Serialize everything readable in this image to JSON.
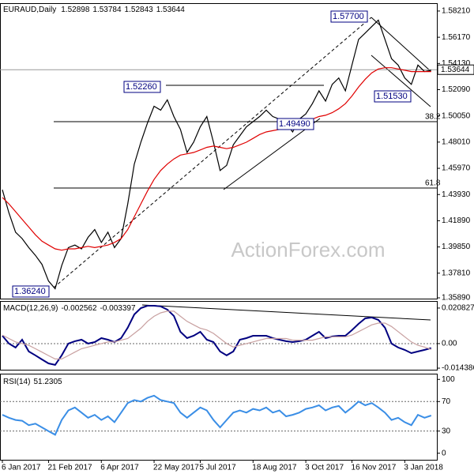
{
  "chart_data": [
    {
      "type": "line",
      "title": "EURAUD,Daily",
      "header_values": [
        1.52898,
        1.53784,
        1.52843,
        1.53644
      ],
      "last_price": 1.53644,
      "watermark": "ActionForex.com",
      "annotations": [
        "1.57700",
        "1.52260",
        "1.51530",
        "1.36240",
        "1.49490"
      ],
      "fib_labels": [
        "38.2",
        "61.8"
      ],
      "categories": [
        "6 Jan 2017",
        null,
        null,
        null,
        null,
        null,
        null,
        "21 Feb 2017",
        null,
        null,
        null,
        null,
        null,
        null,
        null,
        "6 Apr 2017",
        null,
        null,
        null,
        null,
        null,
        null,
        null,
        "22 May 2017",
        null,
        null,
        null,
        null,
        null,
        null,
        "5 Jul 2017",
        null,
        null,
        null,
        null,
        null,
        null,
        null,
        "18 Aug 2017",
        null,
        null,
        null,
        null,
        null,
        null,
        null,
        "3 Oct 2017",
        null,
        null,
        null,
        null,
        null,
        null,
        "16 Nov 2017",
        null,
        null,
        null,
        null,
        null,
        null,
        null,
        "3 Jan 2018",
        null,
        null,
        null,
        null
      ],
      "series": [
        {
          "color": "#000000",
          "values": [
            1.443,
            1.425,
            1.41,
            1.405,
            1.398,
            1.392,
            1.385,
            1.372,
            1.366,
            1.384,
            1.398,
            1.4,
            1.397,
            1.406,
            1.412,
            1.402,
            1.41,
            1.398,
            1.405,
            1.432,
            1.463,
            1.48,
            1.495,
            1.508,
            1.505,
            1.513,
            1.5,
            1.49,
            1.472,
            1.48,
            1.492,
            1.5,
            1.48,
            1.458,
            1.462,
            1.478,
            1.485,
            1.492,
            1.496,
            1.5,
            1.505,
            1.5,
            1.498,
            1.495,
            1.488,
            1.498,
            1.502,
            1.51,
            1.52,
            1.512,
            1.525,
            1.53,
            1.52,
            1.54,
            1.56,
            1.565,
            1.57,
            1.575,
            1.56,
            1.545,
            1.54,
            1.53,
            1.525,
            1.54,
            1.535,
            1.536
          ]
        },
        {
          "color": "#e00000",
          "values": [
            1.437,
            1.432,
            1.426,
            1.42,
            1.414,
            1.408,
            1.403,
            1.4,
            1.397,
            1.396,
            1.397,
            1.397,
            1.398,
            1.399,
            1.398,
            1.399,
            1.4,
            1.402,
            1.405,
            1.412,
            1.422,
            1.432,
            1.442,
            1.451,
            1.458,
            1.463,
            1.467,
            1.47,
            1.471,
            1.472,
            1.474,
            1.476,
            1.477,
            1.476,
            1.475,
            1.476,
            1.478,
            1.48,
            1.483,
            1.486,
            1.488,
            1.489,
            1.49,
            1.491,
            1.492,
            1.494,
            1.496,
            1.498,
            1.5,
            1.501,
            1.503,
            1.506,
            1.51,
            1.516,
            1.523,
            1.529,
            1.534,
            1.537,
            1.538,
            1.538,
            1.537,
            1.536,
            1.535,
            1.535,
            1.535,
            1.535
          ]
        }
      ],
      "ylim": [
        1.3583,
        1.5876
      ],
      "yticks": [
        {
          "value": 1.5821,
          "label": "1.58210"
        },
        {
          "value": 1.5617,
          "label": "1.56170"
        },
        {
          "value": 1.5413,
          "label": "1.54130"
        },
        {
          "value": 1.5209,
          "label": "1.52090"
        },
        {
          "value": 1.5005,
          "label": "1.50050"
        },
        {
          "value": 1.4801,
          "label": "1.48010"
        },
        {
          "value": 1.4597,
          "label": "1.45970"
        },
        {
          "value": 1.4393,
          "label": "1.43930"
        },
        {
          "value": 1.4189,
          "label": "1.41890"
        },
        {
          "value": 1.3985,
          "label": "1.39850"
        },
        {
          "value": 1.3781,
          "label": "1.37810"
        },
        {
          "value": 1.3589,
          "label": "1.35890"
        }
      ],
      "grid": false
    },
    {
      "type": "line",
      "title": "MACD(12,26,9)",
      "header_values": [
        -0.002562,
        -0.003397
      ],
      "series": [
        {
          "color": "#000080",
          "values": [
            0.0046,
            0,
            -0.0023,
            0.0023,
            -0.0046,
            -0.0069,
            -0.0093,
            -0.0116,
            -0.0125,
            -0.0069,
            0,
            0.0014,
            0.0023,
            0,
            0.0009,
            0.0032,
            0.0023,
            0.0009,
            0.0032,
            0.0093,
            0.0171,
            0.0208,
            0.0222,
            0.0222,
            0.0218,
            0.0199,
            0.0162,
            0.0069,
            0.0032,
            0.0046,
            0.0069,
            0.0023,
            0.0009,
            -0.0046,
            -0.0069,
            -0.0046,
            0.0023,
            0.0032,
            0.0046,
            0.0046,
            0.0046,
            0.0032,
            0.0023,
            0.0014,
            0.0009,
            0.0014,
            0.0023,
            0.0046,
            0.0069,
            0.0032,
            0.0042,
            0.0046,
            0.0046,
            0.0079,
            0.0116,
            0.0148,
            0.0153,
            0.0139,
            0.0093,
            0,
            -0.0023,
            -0.0037,
            -0.0056,
            -0.0046,
            -0.0037,
            -0.0026
          ]
        },
        {
          "color": "#c8a0a0",
          "values": [
            0.005,
            0.003,
            0.001,
            0,
            -0.001,
            -0.003,
            -0.005,
            -0.007,
            -0.009,
            -0.009,
            -0.007,
            -0.005,
            -0.003,
            -0.002,
            -0.001,
            0,
            0.001,
            0.001,
            0.002,
            0.003,
            0.006,
            0.009,
            0.013,
            0.016,
            0.018,
            0.019,
            0.019,
            0.016,
            0.013,
            0.011,
            0.009,
            0.008,
            0.006,
            0.003,
            0,
            -0.002,
            -0.001,
            0,
            0.001,
            0.002,
            0.003,
            0.003,
            0.003,
            0.003,
            0.002,
            0.002,
            0.002,
            0.002,
            0.003,
            0.004,
            0.004,
            0.004,
            0.004,
            0.005,
            0.007,
            0.009,
            0.011,
            0.012,
            0.012,
            0.01,
            0.007,
            0.004,
            0.001,
            -0.001,
            -0.002,
            -0.0034
          ]
        }
      ],
      "ylim": [
        -0.0153,
        0.0245
      ],
      "yticks": [
        0.020827,
        {
          "value": 0,
          "label": "0.00"
        },
        -0.014386
      ],
      "grid": true
    },
    {
      "type": "line",
      "title": "RSI(14)",
      "header_values": [
        51.2305
      ],
      "series": [
        {
          "color": "#3a8ee6",
          "values": [
            52,
            48,
            45,
            44,
            38,
            40,
            35,
            30,
            25,
            45,
            58,
            62,
            55,
            48,
            52,
            45,
            50,
            42,
            55,
            68,
            72,
            70,
            75,
            78,
            72,
            70,
            68,
            55,
            48,
            55,
            62,
            58,
            45,
            35,
            45,
            55,
            58,
            55,
            60,
            58,
            62,
            55,
            58,
            50,
            52,
            55,
            60,
            62,
            65,
            58,
            62,
            64,
            55,
            62,
            70,
            65,
            68,
            62,
            55,
            45,
            48,
            42,
            38,
            52,
            48,
            51
          ]
        }
      ],
      "ylim": [
        -8.9,
        106.7
      ],
      "yticks": [
        100,
        70,
        30,
        0
      ],
      "grid": true
    }
  ]
}
